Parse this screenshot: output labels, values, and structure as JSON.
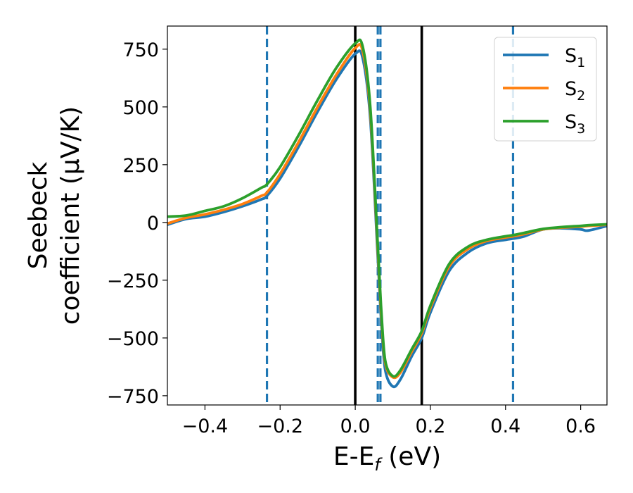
{
  "chart_data": {
    "type": "line",
    "title": "",
    "xlabel": {
      "main": "E-E",
      "sub": "f",
      "suffix": " (eV)"
    },
    "ylabel": {
      "line1": "Seebeck",
      "line2": "coefficient  (μV/K)"
    },
    "xlim": [
      -0.5,
      0.67
    ],
    "ylim": [
      -790,
      850
    ],
    "xticks": [
      -0.4,
      -0.2,
      0.0,
      0.2,
      0.4,
      0.6
    ],
    "xtick_labels": [
      "−0.4",
      "−0.2",
      "0.0",
      "0.2",
      "0.4",
      "0.6"
    ],
    "yticks": [
      -750,
      -500,
      -250,
      0,
      250,
      500,
      750
    ],
    "ytick_labels": [
      "−750",
      "−500",
      "−250",
      "0",
      "250",
      "500",
      "750"
    ],
    "grid": false,
    "legend_position": "top-right",
    "vlines": [
      {
        "x": -0.235,
        "style": "dashed",
        "color": "#1f77b4"
      },
      {
        "x": 0.0,
        "style": "solid",
        "color": "#000000"
      },
      {
        "x": 0.06,
        "style": "dashed",
        "color": "#1f77b4"
      },
      {
        "x": 0.067,
        "style": "dashed",
        "color": "#1f77b4"
      },
      {
        "x": 0.177,
        "style": "solid",
        "color": "#000000"
      },
      {
        "x": 0.42,
        "style": "dashed",
        "color": "#1f77b4"
      }
    ],
    "series": [
      {
        "name": "S",
        "sub": "1",
        "color": "#1f77b4",
        "x": [
          -0.5,
          -0.45,
          -0.4,
          -0.35,
          -0.3,
          -0.25,
          -0.235,
          -0.2,
          -0.15,
          -0.1,
          -0.05,
          0.0,
          0.02,
          0.04,
          0.06,
          0.07,
          0.08,
          0.1,
          0.12,
          0.15,
          0.177,
          0.2,
          0.25,
          0.3,
          0.35,
          0.4,
          0.42,
          0.45,
          0.5,
          0.55,
          0.6,
          0.62,
          0.67
        ],
        "y": [
          -10,
          15,
          25,
          45,
          70,
          100,
          115,
          190,
          330,
          480,
          620,
          730,
          710,
          450,
          -150,
          -450,
          -640,
          -710,
          -680,
          -580,
          -500,
          -390,
          -210,
          -130,
          -90,
          -75,
          -70,
          -60,
          -30,
          -25,
          -30,
          -35,
          -15
        ]
      },
      {
        "name": "S",
        "sub": "2",
        "color": "#ff7f0e",
        "x": [
          -0.5,
          -0.45,
          -0.4,
          -0.35,
          -0.3,
          -0.25,
          -0.235,
          -0.2,
          -0.15,
          -0.1,
          -0.05,
          0.0,
          0.02,
          0.04,
          0.06,
          0.07,
          0.08,
          0.1,
          0.12,
          0.15,
          0.177,
          0.2,
          0.25,
          0.3,
          0.35,
          0.4,
          0.42,
          0.45,
          0.5,
          0.55,
          0.6,
          0.62,
          0.67
        ],
        "y": [
          -5,
          20,
          35,
          55,
          80,
          115,
          130,
          210,
          350,
          500,
          640,
          755,
          740,
          480,
          -120,
          -420,
          -610,
          -670,
          -650,
          -560,
          -480,
          -370,
          -190,
          -115,
          -80,
          -65,
          -60,
          -50,
          -30,
          -22,
          -18,
          -15,
          -10
        ]
      },
      {
        "name": "S",
        "sub": "3",
        "color": "#2ca02c",
        "x": [
          -0.5,
          -0.45,
          -0.4,
          -0.35,
          -0.3,
          -0.25,
          -0.235,
          -0.2,
          -0.15,
          -0.1,
          -0.05,
          0.0,
          0.02,
          0.04,
          0.06,
          0.07,
          0.08,
          0.1,
          0.12,
          0.15,
          0.177,
          0.2,
          0.25,
          0.3,
          0.35,
          0.4,
          0.42,
          0.45,
          0.5,
          0.55,
          0.6,
          0.62,
          0.67
        ],
        "y": [
          25,
          30,
          50,
          70,
          105,
          150,
          165,
          240,
          380,
          530,
          670,
          775,
          760,
          500,
          -100,
          -400,
          -600,
          -665,
          -640,
          -550,
          -470,
          -360,
          -180,
          -105,
          -75,
          -60,
          -55,
          -45,
          -28,
          -20,
          -15,
          -12,
          -8
        ]
      }
    ]
  }
}
